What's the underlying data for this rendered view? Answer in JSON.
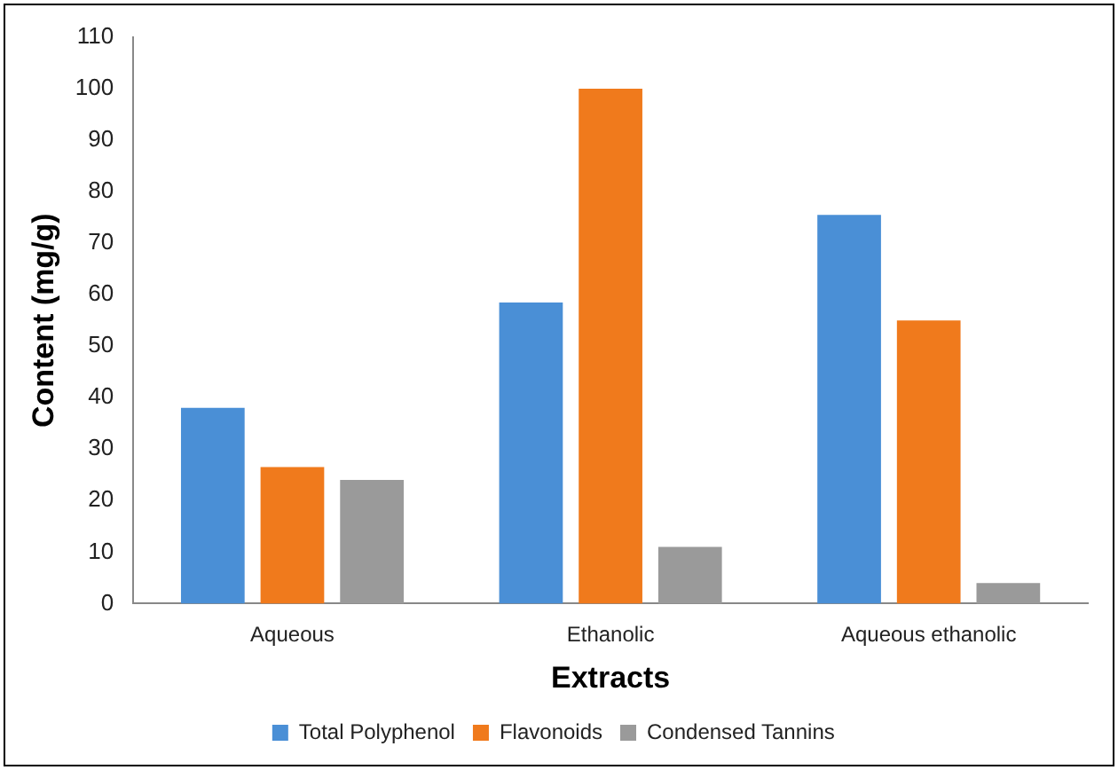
{
  "chart_data": {
    "type": "bar",
    "xlabel": "Extracts",
    "ylabel": "Content (mg/g)",
    "categories": [
      "Aqueous",
      "Ethanolic",
      "Aqueous ethanolic"
    ],
    "series": [
      {
        "name": "Total Polyphenol",
        "color": "#4a8fd6",
        "values": [
          38,
          58.5,
          75.5
        ]
      },
      {
        "name": "Flavonoids",
        "color": "#f07a1c",
        "values": [
          26.5,
          100,
          55
        ]
      },
      {
        "name": "Condensed Tannins",
        "color": "#9a9a9a",
        "values": [
          24,
          11,
          4
        ]
      }
    ],
    "ylim": [
      0,
      110
    ],
    "yticks": [
      0,
      10,
      20,
      30,
      40,
      50,
      60,
      70,
      80,
      90,
      100,
      110
    ],
    "grid": false,
    "legend": "bottom"
  }
}
